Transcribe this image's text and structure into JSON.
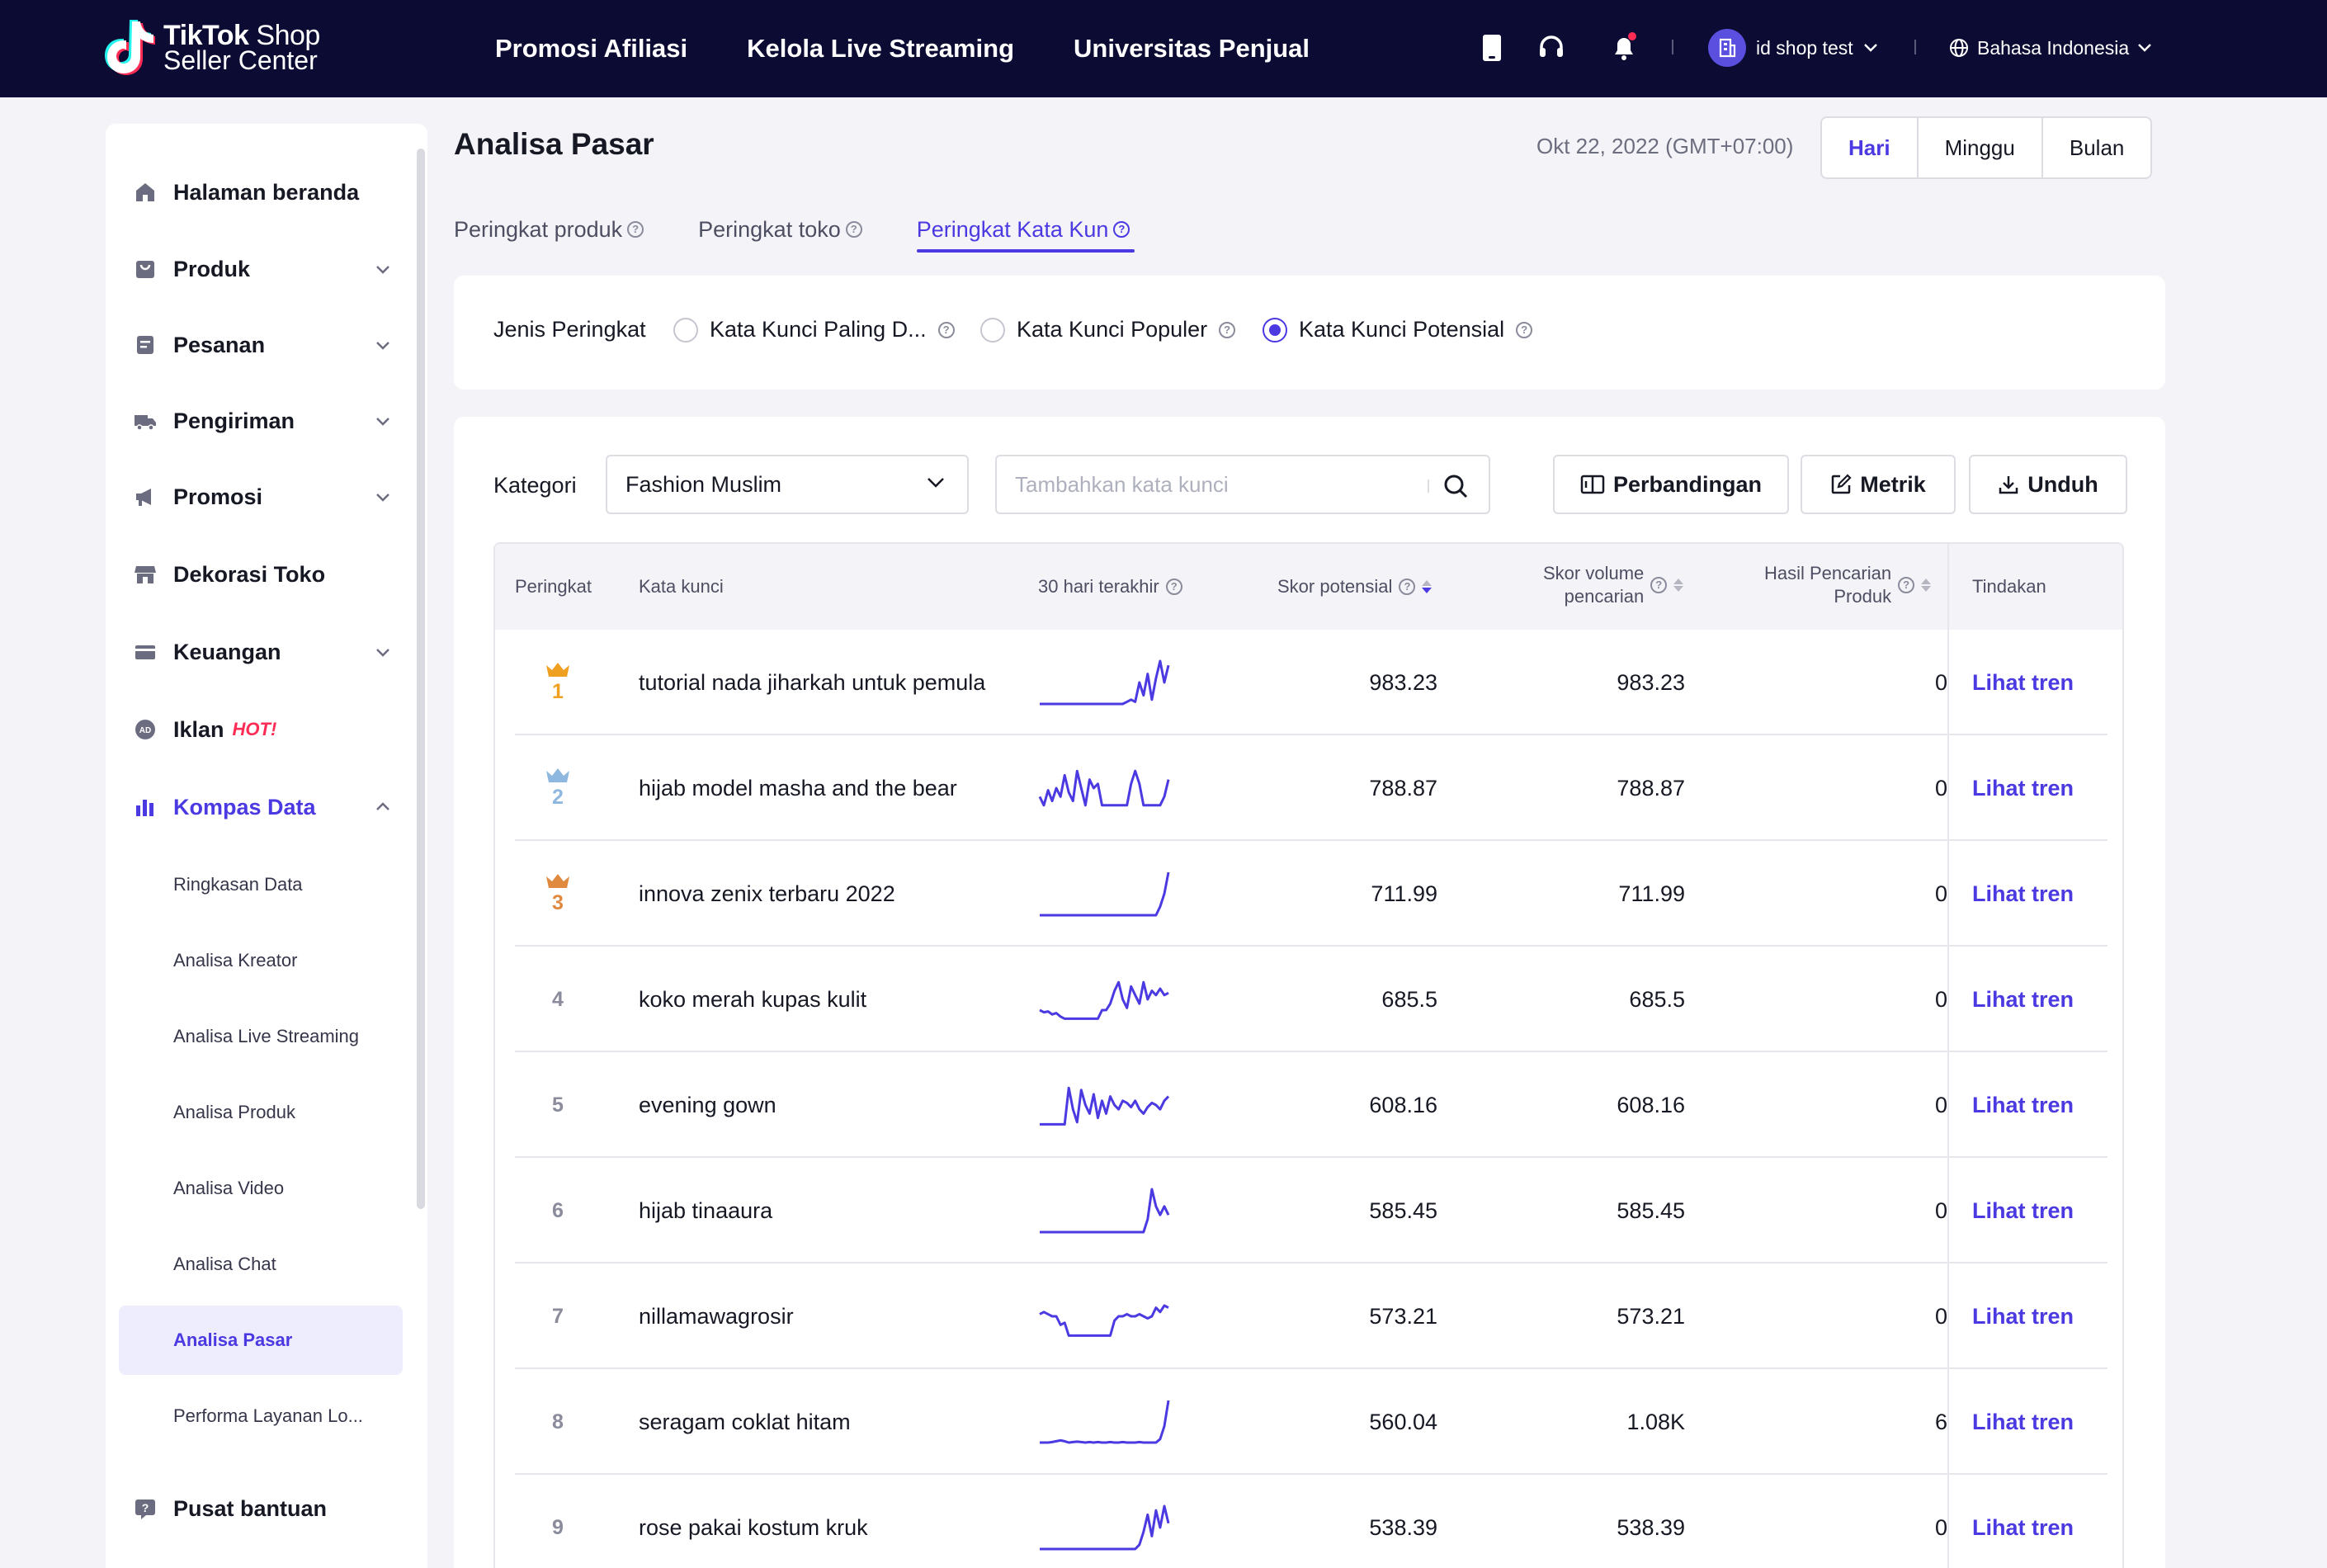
{
  "header": {
    "logo_brand": "TikTok",
    "logo_shop": "Shop",
    "logo_sub": "Seller Center",
    "nav": [
      "Promosi Afiliasi",
      "Kelola Live Streaming",
      "Universitas Penjual"
    ],
    "account_name": "id shop test",
    "language": "Bahasa Indonesia"
  },
  "sidebar": {
    "items": [
      {
        "label": "Halaman beranda",
        "icon": "home-icon"
      },
      {
        "label": "Produk",
        "icon": "bag-icon"
      },
      {
        "label": "Pesanan",
        "icon": "order-icon"
      },
      {
        "label": "Pengiriman",
        "icon": "truck-icon"
      },
      {
        "label": "Promosi",
        "icon": "megaphone-icon"
      },
      {
        "label": "Dekorasi Toko",
        "icon": "store-icon"
      },
      {
        "label": "Keuangan",
        "icon": "card-icon"
      },
      {
        "label": "Iklan",
        "icon": "ad-icon",
        "badge": "HOT!"
      },
      {
        "label": "Kompas Data",
        "icon": "chart-icon"
      }
    ],
    "sub_items": [
      "Ringkasan Data",
      "Analisa Kreator",
      "Analisa Live Streaming",
      "Analisa Produk",
      "Analisa Video",
      "Analisa Chat",
      "Analisa Pasar",
      "Performa Layanan Lo..."
    ],
    "help": "Pusat bantuan"
  },
  "page": {
    "title": "Analisa Pasar",
    "date": "Okt 22, 2022 (GMT+07:00)",
    "periods": [
      "Hari",
      "Minggu",
      "Bulan"
    ],
    "tabs": [
      "Peringkat produk",
      "Peringkat toko",
      "Peringkat Kata Kun"
    ],
    "rank_type_label": "Jenis Peringkat",
    "rank_types": [
      "Kata Kunci Paling D...",
      "Kata Kunci Populer",
      "Kata Kunci Potensial"
    ],
    "category_label": "Kategori",
    "category_value": "Fashion Muslim",
    "search_placeholder": "Tambahkan kata kunci",
    "buttons": {
      "compare": "Perbandingan",
      "metric": "Metrik",
      "download": "Unduh"
    }
  },
  "table": {
    "headers": {
      "rank": "Peringkat",
      "keyword": "Kata kunci",
      "last30": "30 hari terakhir",
      "potential": "Skor potensial",
      "volume_l1": "Skor volume",
      "volume_l2": "pencarian",
      "results_l1": "Hasil Pencarian",
      "results_l2": "Produk",
      "action": "Tindakan"
    },
    "rows": [
      {
        "rank": "1",
        "keyword": "tutorial nada jiharkah untuk pemula",
        "potential": "983.23",
        "volume": "983.23",
        "results": "0",
        "action": "Lihat tren",
        "spark": [
          0,
          0,
          0,
          0,
          0,
          0,
          0,
          0,
          0,
          0,
          0,
          0,
          0,
          0,
          0,
          0,
          0,
          0,
          0,
          0,
          0,
          0.05,
          0.1,
          0.05,
          0.5,
          0.2,
          0.7,
          0.1,
          0.6,
          1,
          0.5,
          0.9
        ]
      },
      {
        "rank": "2",
        "keyword": "hijab model masha and the bear",
        "potential": "788.87",
        "volume": "788.87",
        "results": "0",
        "action": "Lihat tren",
        "spark": [
          0.3,
          0.1,
          0.45,
          0.2,
          0.5,
          0.3,
          0.8,
          0.4,
          0.2,
          0.9,
          0.5,
          0.1,
          0.7,
          0.5,
          0.6,
          0.1,
          0.1,
          0.1,
          0.1,
          0.1,
          0.1,
          0.1,
          0.6,
          0.9,
          0.6,
          0.1,
          0.1,
          0.1,
          0.1,
          0.1,
          0.3,
          0.7
        ]
      },
      {
        "rank": "3",
        "keyword": "innova zenix terbaru 2022",
        "potential": "711.99",
        "volume": "711.99",
        "results": "0",
        "action": "Lihat tren",
        "spark": [
          0,
          0,
          0,
          0,
          0,
          0,
          0,
          0,
          0,
          0,
          0,
          0,
          0,
          0,
          0,
          0,
          0,
          0,
          0,
          0,
          0,
          0,
          0,
          0,
          0,
          0,
          0,
          0,
          0,
          0.2,
          0.5,
          1
        ]
      },
      {
        "rank": "4",
        "keyword": "koko merah kupas kulit",
        "potential": "685.5",
        "volume": "685.5",
        "results": "0",
        "action": "Lihat tren",
        "spark": [
          0.25,
          0.2,
          0.22,
          0.15,
          0.18,
          0.1,
          0.05,
          0.05,
          0.05,
          0.05,
          0.05,
          0.05,
          0.05,
          0.05,
          0.05,
          0.25,
          0.25,
          0.4,
          0.7,
          0.9,
          0.5,
          0.3,
          0.8,
          0.6,
          0.4,
          0.9,
          0.5,
          0.7,
          0.6,
          0.75,
          0.6,
          0.65
        ]
      },
      {
        "rank": "5",
        "keyword": "evening gown",
        "potential": "608.16",
        "volume": "608.16",
        "results": "0",
        "action": "Lihat tren",
        "spark": [
          0.05,
          0.05,
          0.05,
          0.05,
          0.05,
          0.05,
          0.05,
          0.9,
          0.4,
          0.1,
          0.85,
          0.5,
          0.3,
          0.75,
          0.2,
          0.6,
          0.3,
          0.7,
          0.5,
          0.4,
          0.6,
          0.55,
          0.45,
          0.6,
          0.4,
          0.3,
          0.45,
          0.55,
          0.5,
          0.4,
          0.6,
          0.7
        ]
      },
      {
        "rank": "6",
        "keyword": "hijab tinaaura",
        "potential": "585.45",
        "volume": "585.45",
        "results": "0",
        "action": "Lihat tren",
        "spark": [
          0,
          0,
          0,
          0,
          0,
          0,
          0,
          0,
          0,
          0,
          0,
          0,
          0,
          0,
          0,
          0,
          0,
          0,
          0,
          0,
          0,
          0,
          0,
          0,
          0,
          0,
          0.3,
          1,
          0.6,
          0.4,
          0.6,
          0.4
        ]
      },
      {
        "rank": "7",
        "keyword": "nillamawagrosir",
        "potential": "573.21",
        "volume": "573.21",
        "results": "0",
        "action": "Lihat tren",
        "spark": [
          0.55,
          0.6,
          0.55,
          0.5,
          0.5,
          0.3,
          0.35,
          0.05,
          0.05,
          0.05,
          0.05,
          0.05,
          0.05,
          0.05,
          0.05,
          0.05,
          0.05,
          0.05,
          0.4,
          0.5,
          0.5,
          0.55,
          0.5,
          0.5,
          0.55,
          0.5,
          0.45,
          0.5,
          0.7,
          0.6,
          0.75,
          0.7
        ]
      },
      {
        "rank": "8",
        "keyword": "seragam coklat hitam",
        "potential": "560.04",
        "volume": "1.08K",
        "results": "6",
        "action": "Lihat tren",
        "spark": [
          0.02,
          0.02,
          0.02,
          0.03,
          0.05,
          0.07,
          0.05,
          0.02,
          0.03,
          0.04,
          0.03,
          0.02,
          0.03,
          0.02,
          0.03,
          0.02,
          0.02,
          0.03,
          0.02,
          0.02,
          0.03,
          0.02,
          0.02,
          0.02,
          0.03,
          0.02,
          0.02,
          0.02,
          0.02,
          0.1,
          0.4,
          1
        ]
      },
      {
        "rank": "9",
        "keyword": "rose pakai kostum kruk",
        "potential": "538.39",
        "volume": "538.39",
        "results": "0",
        "action": "Lihat tren",
        "spark": [
          0,
          0,
          0,
          0,
          0,
          0,
          0,
          0,
          0,
          0,
          0,
          0,
          0,
          0,
          0,
          0,
          0,
          0,
          0,
          0,
          0,
          0,
          0,
          0,
          0.1,
          0.4,
          0.8,
          0.3,
          0.9,
          0.5,
          1,
          0.6
        ]
      }
    ]
  },
  "colors": {
    "accent": "#4b39e1",
    "topbar": "#0b0b33",
    "gold": "#f0a020",
    "silver": "#8fb8e0",
    "bronze": "#e08a40"
  }
}
